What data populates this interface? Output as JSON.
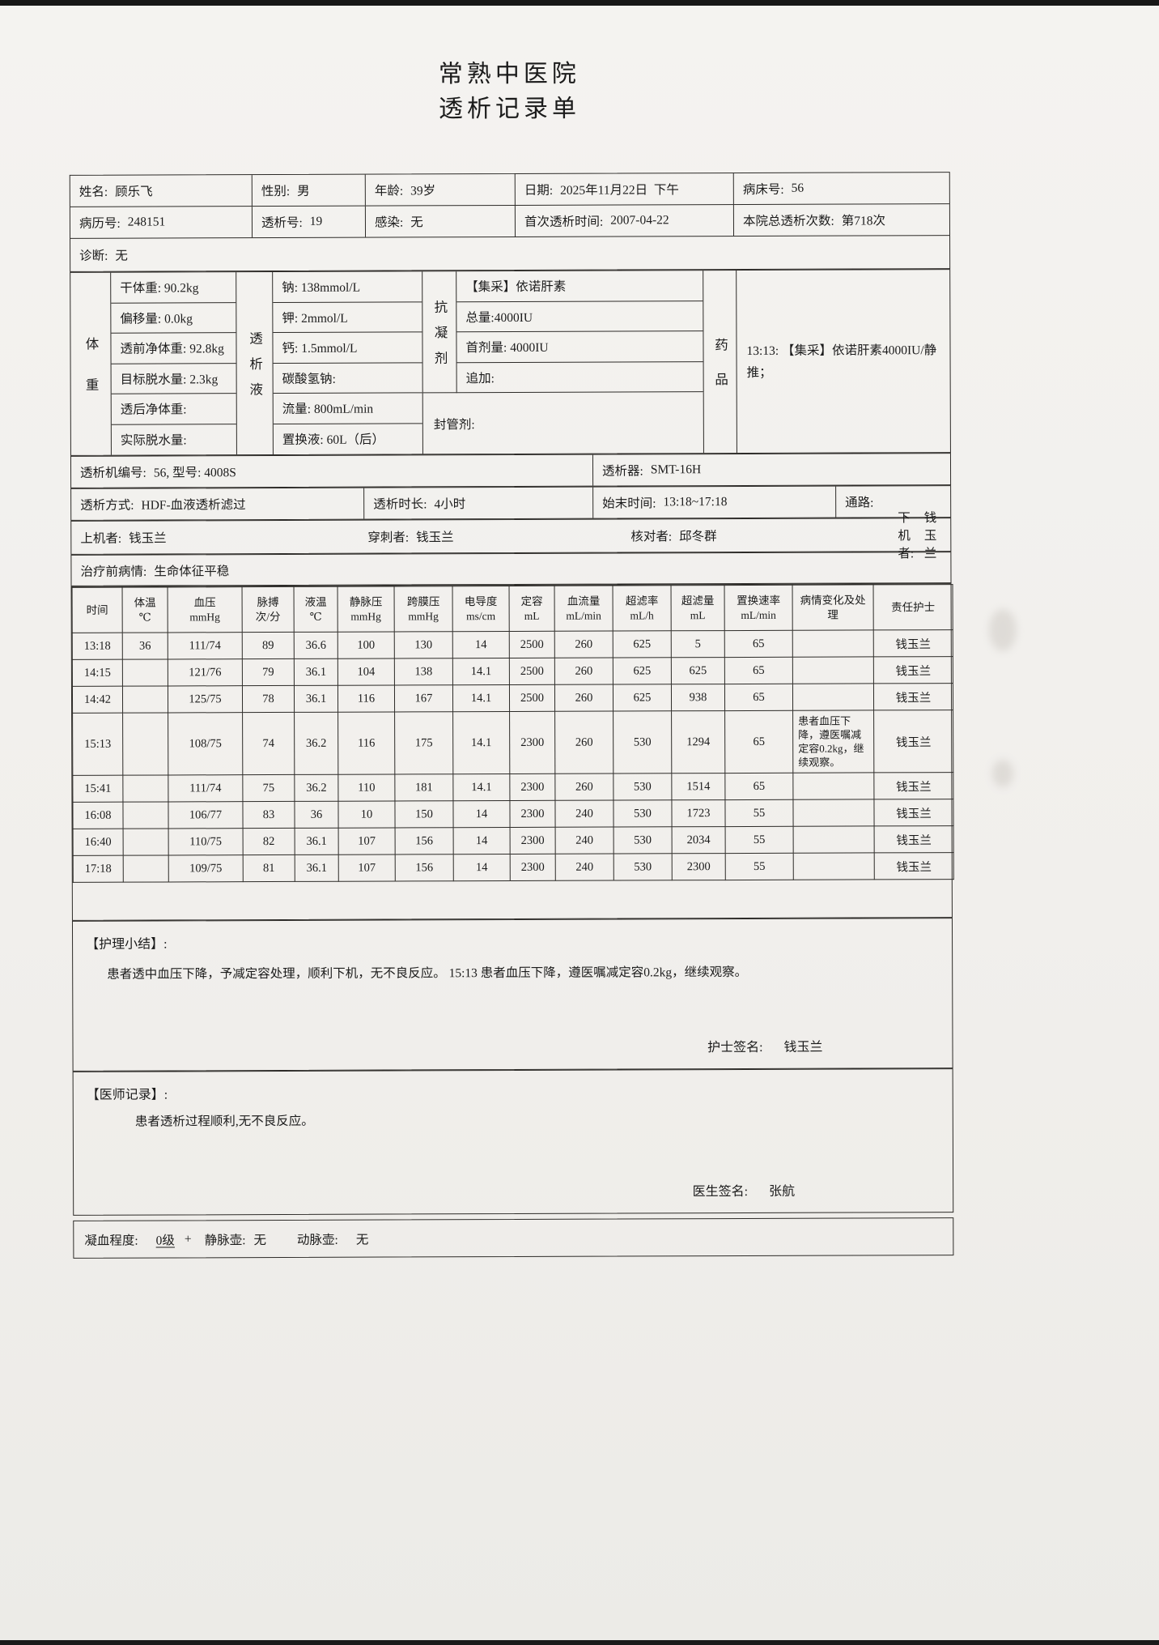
{
  "colors": {
    "paper": "#f1efec",
    "ink": "#1b1b1b",
    "rule": "#2d2b28",
    "scan_edge": "#171717"
  },
  "header": {
    "hospital": "常熟中医院",
    "form_title": "透析记录单"
  },
  "patient_info": {
    "rows": [
      [
        {
          "label": "姓名:",
          "value": "顾乐飞"
        },
        {
          "label": "性别:",
          "value": "男"
        },
        {
          "label": "年龄:",
          "value": "39岁"
        },
        {
          "label": "日期:",
          "value": "2025年11月22日  下午"
        },
        {
          "label": "病床号:",
          "value": "56"
        }
      ],
      [
        {
          "label": "病历号:",
          "value": "248151"
        },
        {
          "label": "透析号:",
          "value": "19"
        },
        {
          "label": "感染:",
          "value": "无"
        },
        {
          "label": "首次透析时间:",
          "value": "2007-04-22"
        },
        {
          "label": "本院总透析次数:",
          "value": "第718次"
        }
      ]
    ],
    "diagnosis": {
      "label": "诊断:",
      "value": "无"
    }
  },
  "params": {
    "weight": {
      "group_label": "体重",
      "items": [
        "干体重: 90.2kg",
        "偏移量: 0.0kg",
        "透前净体重: 92.8kg",
        "目标脱水量: 2.3kg",
        "透后净体重:",
        "实际脱水量:"
      ]
    },
    "dialysate": {
      "group_label": "透析液",
      "items": [
        "钠: 138mmol/L",
        "钾: 2mmol/L",
        "钙: 1.5mmol/L",
        "碳酸氢钠:",
        "流量: 800mL/min",
        "置换液: 60L（后）"
      ]
    },
    "anticoagulant": {
      "group_label": "抗凝剂",
      "items": [
        "【集采】依诺肝素",
        "总量:4000IU",
        "首剂量: 4000IU",
        "追加:"
      ],
      "seal": "封管剂:"
    },
    "medication": {
      "group_label": "药品",
      "text": "13:13: 【集采】依诺肝素4000IU/静推；"
    }
  },
  "machine": {
    "row1": [
      {
        "label": "透析机编号:",
        "value": "56, 型号: 4008S"
      },
      {
        "label": "透析器:",
        "value": "SMT-16H"
      }
    ],
    "row2": [
      {
        "label": "透析方式:",
        "value": "HDF-血液透析滤过"
      },
      {
        "label": "透析时长:",
        "value": "4小时"
      },
      {
        "label": "始末时间:",
        "value": "13:18~17:18"
      },
      {
        "label": "通路:",
        "value": ""
      }
    ],
    "operators": [
      {
        "label": "上机者:",
        "value": "钱玉兰"
      },
      {
        "label": "穿刺者:",
        "value": "钱玉兰"
      },
      {
        "label": "核对者:",
        "value": "邱冬群"
      },
      {
        "label": "下机者:",
        "value": "钱玉兰"
      }
    ],
    "pre_condition": {
      "label": "治疗前病情:",
      "value": "生命体征平稳"
    }
  },
  "monitor": {
    "headers": [
      {
        "line1": "时间",
        "line2": ""
      },
      {
        "line1": "体温",
        "line2": "℃"
      },
      {
        "line1": "血压",
        "line2": "mmHg"
      },
      {
        "line1": "脉搏",
        "line2": "次/分"
      },
      {
        "line1": "液温",
        "line2": "℃"
      },
      {
        "line1": "静脉压",
        "line2": "mmHg"
      },
      {
        "line1": "跨膜压",
        "line2": "mmHg"
      },
      {
        "line1": "电导度",
        "line2": "ms/cm"
      },
      {
        "line1": "定容",
        "line2": "mL"
      },
      {
        "line1": "血流量",
        "line2": "mL/min"
      },
      {
        "line1": "超滤率",
        "line2": "mL/h"
      },
      {
        "line1": "超滤量",
        "line2": "mL"
      },
      {
        "line1": "置换速率",
        "line2": "mL/min"
      },
      {
        "line1": "病情变化及处理",
        "line2": ""
      },
      {
        "line1": "责任护士",
        "line2": ""
      }
    ],
    "rows": [
      [
        "13:18",
        "36",
        "111/74",
        "89",
        "36.6",
        "100",
        "130",
        "14",
        "2500",
        "260",
        "625",
        "5",
        "65",
        "",
        "钱玉兰"
      ],
      [
        "14:15",
        "",
        "121/76",
        "79",
        "36.1",
        "104",
        "138",
        "14.1",
        "2500",
        "260",
        "625",
        "625",
        "65",
        "",
        "钱玉兰"
      ],
      [
        "14:42",
        "",
        "125/75",
        "78",
        "36.1",
        "116",
        "167",
        "14.1",
        "2500",
        "260",
        "625",
        "938",
        "65",
        "",
        "钱玉兰"
      ],
      [
        "15:13",
        "",
        "108/75",
        "74",
        "36.2",
        "116",
        "175",
        "14.1",
        "2300",
        "260",
        "530",
        "1294",
        "65",
        "患者血压下降，遵医嘱减定容0.2kg，继续观察。",
        "钱玉兰"
      ],
      [
        "15:41",
        "",
        "111/74",
        "75",
        "36.2",
        "110",
        "181",
        "14.1",
        "2300",
        "260",
        "530",
        "1514",
        "65",
        "",
        "钱玉兰"
      ],
      [
        "16:08",
        "",
        "106/77",
        "83",
        "36",
        "10",
        "150",
        "14",
        "2300",
        "240",
        "530",
        "1723",
        "55",
        "",
        "钱玉兰"
      ],
      [
        "16:40",
        "",
        "110/75",
        "82",
        "36.1",
        "107",
        "156",
        "14",
        "2300",
        "240",
        "530",
        "2034",
        "55",
        "",
        "钱玉兰"
      ],
      [
        "17:18",
        "",
        "109/75",
        "81",
        "36.1",
        "107",
        "156",
        "14",
        "2300",
        "240",
        "530",
        "2300",
        "55",
        "",
        "钱玉兰"
      ]
    ]
  },
  "nursing_summary": {
    "title": "【护理小结】:",
    "body": "患者透中血压下降，予减定容处理，顺利下机，无不良反应。 15:13 患者血压下降，遵医嘱减定容0.2kg，继续观察。",
    "sign_label": "护士签名:",
    "sign_value": "钱玉兰"
  },
  "doctor_record": {
    "title": "【医师记录】:",
    "body": "患者透析过程顺利,无不良反应。",
    "sign_label": "医生签名:",
    "sign_value": "张航"
  },
  "coagulation": {
    "label": "凝血程度:",
    "grade": "0级",
    "plus": "+",
    "venous_label": "静脉壶:",
    "venous_value": "无",
    "arterial_label": "动脉壶:",
    "arterial_value": "无"
  }
}
